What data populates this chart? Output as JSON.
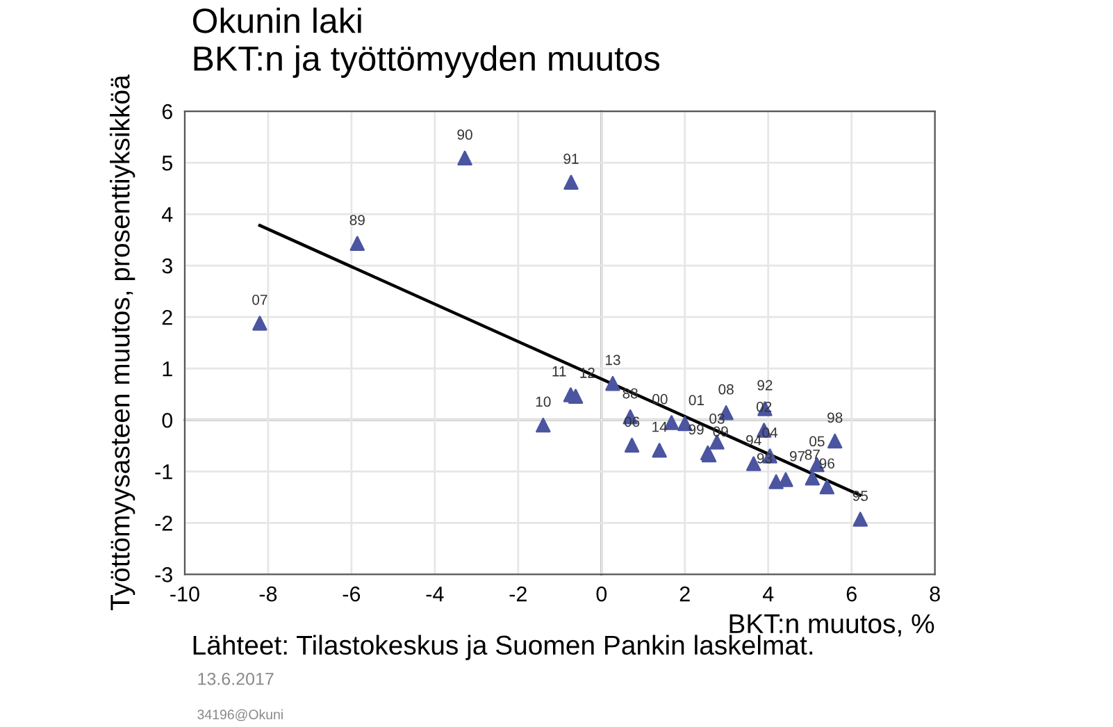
{
  "chart_data": {
    "type": "scatter",
    "title": "Okunin laki",
    "subtitle": "BKT:n ja työttömyyden muutos",
    "xlabel": "BKT:n muutos, %",
    "ylabel": "Työttömyysasteen muutos, prosenttiyksikköä",
    "xlim": [
      -10,
      8
    ],
    "xticks": [
      -10,
      -8,
      -6,
      -4,
      -2,
      0,
      2,
      4,
      6,
      8
    ],
    "ylim": [
      -3,
      6
    ],
    "yticks": [
      -3,
      -2,
      -1,
      0,
      1,
      2,
      3,
      4,
      5,
      6
    ],
    "grid": true,
    "legend": false,
    "series": [
      {
        "marker": "triangle",
        "color": "#4b55a0",
        "x": [
          -8.2,
          -5.86,
          -3.28,
          -0.73,
          -1.4,
          -0.74,
          -0.62,
          0.27,
          0.69,
          0.73,
          1.39,
          1.68,
          2.0,
          2.55,
          2.58,
          2.77,
          2.99,
          3.92,
          3.9,
          4.04,
          3.65,
          4.19,
          4.42,
          5.06,
          5.17,
          5.41,
          5.6,
          6.21
        ],
        "values": [
          1.88,
          3.43,
          5.09,
          4.62,
          -0.1,
          0.49,
          0.46,
          0.71,
          0.06,
          -0.49,
          -0.59,
          -0.05,
          -0.07,
          -0.64,
          -0.68,
          -0.43,
          0.14,
          0.22,
          -0.2,
          -0.7,
          -0.85,
          -1.2,
          -1.16,
          -1.13,
          -0.87,
          -1.3,
          -0.41,
          -1.93
        ]
      },
      {
        "type": "line",
        "color": "#000000",
        "x": [
          -8.2,
          6.2
        ],
        "values": [
          3.78,
          -1.46
        ]
      }
    ],
    "annotations": [
      {
        "text": "07",
        "x": -8.2,
        "y": 1.88
      },
      {
        "text": "89",
        "x": -5.86,
        "y": 3.43
      },
      {
        "text": "90",
        "x": -3.28,
        "y": 5.09
      },
      {
        "text": "91",
        "x": -0.73,
        "y": 4.62
      },
      {
        "text": "10",
        "x": -1.4,
        "y": -0.1
      },
      {
        "text": "11",
        "x": -0.74,
        "y": 0.49
      },
      {
        "text": "12",
        "x": -0.62,
        "y": 0.46
      },
      {
        "text": "13",
        "x": 0.27,
        "y": 0.71
      },
      {
        "text": "88",
        "x": 0.69,
        "y": 0.06
      },
      {
        "text": "06",
        "x": 0.73,
        "y": -0.49
      },
      {
        "text": "14",
        "x": 1.39,
        "y": -0.59
      },
      {
        "text": "00",
        "x": 1.68,
        "y": -0.05
      },
      {
        "text": "01",
        "x": 2.0,
        "y": -0.07
      },
      {
        "text": "99",
        "x": 2.55,
        "y": -0.64
      },
      {
        "text": "09",
        "x": 2.58,
        "y": -0.68
      },
      {
        "text": "03",
        "x": 2.77,
        "y": -0.43
      },
      {
        "text": "08",
        "x": 2.99,
        "y": 0.14
      },
      {
        "text": "92",
        "x": 3.92,
        "y": 0.22
      },
      {
        "text": "02",
        "x": 3.9,
        "y": -0.2
      },
      {
        "text": "04",
        "x": 4.04,
        "y": -0.7
      },
      {
        "text": "94",
        "x": 3.65,
        "y": -0.85
      },
      {
        "text": "93",
        "x": 4.19,
        "y": -1.2
      },
      {
        "text": "97",
        "x": 4.42,
        "y": -1.16
      },
      {
        "text": "87",
        "x": 5.06,
        "y": -1.13
      },
      {
        "text": "05",
        "x": 5.17,
        "y": -0.87
      },
      {
        "text": "96",
        "x": 5.41,
        "y": -1.3
      },
      {
        "text": "98",
        "x": 5.6,
        "y": -0.41
      },
      {
        "text": "95",
        "x": 6.21,
        "y": -1.93
      },
      "Lähteet: Tilastokeskus ja Suomen Pankin laskelmat.",
      "13.6.2017",
      "34196@Okuni"
    ]
  }
}
